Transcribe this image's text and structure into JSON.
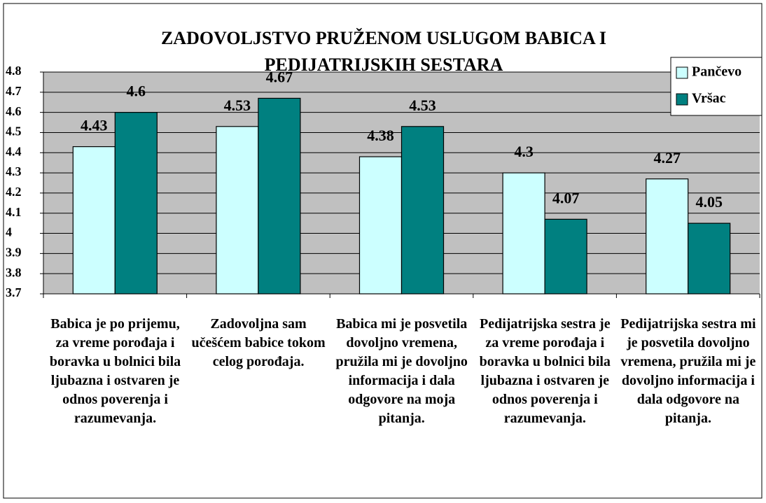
{
  "chart_data": {
    "type": "bar",
    "title": "ZADOVOLJSTVO PRUŽENOM USLUGOM BABICA I PEDIJATRIJSKIH SESTARA",
    "categories": [
      "Babica je po prijemu, za vreme porođaja i boravka u bolnici bila ljubazna i ostvaren je odnos poverenja i razumevanja.",
      "Zadovoljna sam učešćem babice tokom celog porođaja.",
      "Babica mi je posvetila dovoljno vremena, pružila mi je dovoljno informacija i dala odgovore na moja pitanja.",
      "Pedijatrijska sestra je za vreme porođaja i boravka u bolnici bila ljubazna i ostvaren je odnos poverenja i razumevanja.",
      "Pedijatrijska sestra mi je posvetila dovoljno vremena, pružila mi je dovoljno informacija i dala odgovore na pitanja."
    ],
    "series": [
      {
        "name": "Pančevo",
        "color": "#ccffff",
        "values": [
          4.43,
          4.53,
          4.38,
          4.3,
          4.27
        ]
      },
      {
        "name": "Vršac",
        "color": "#008080",
        "values": [
          4.6,
          4.67,
          4.53,
          4.07,
          4.05
        ]
      }
    ],
    "ylim": [
      3.7,
      4.8
    ],
    "yticks": [
      3.7,
      3.8,
      3.9,
      4,
      4.1,
      4.2,
      4.3,
      4.4,
      4.5,
      4.6,
      4.7,
      4.8
    ],
    "grid": true,
    "legend": "top-right"
  }
}
